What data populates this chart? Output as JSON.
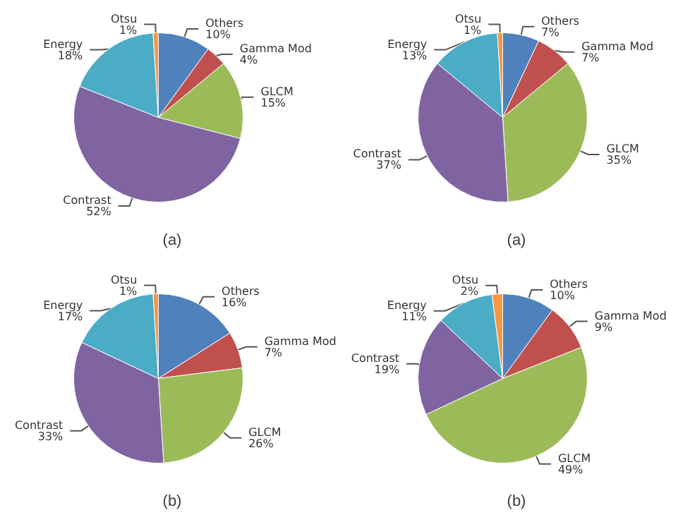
{
  "chart_data": [
    {
      "type": "pie",
      "title": "(a)",
      "categories": [
        "Others",
        "Gamma Mod",
        "GLCM",
        "Contrast",
        "Energy",
        "Otsu"
      ],
      "values": [
        10,
        4,
        15,
        52,
        18,
        1
      ],
      "value_labels": [
        "10%",
        "4%",
        "15%",
        "52%",
        "18%",
        "1%"
      ],
      "colors": [
        "#4f81bd",
        "#c0504d",
        "#9bbb59",
        "#8064a2",
        "#4bacc6",
        "#f79646"
      ]
    },
    {
      "type": "pie",
      "title": "(a)",
      "categories": [
        "Others",
        "Gamma Mod",
        "GLCM",
        "Contrast",
        "Energy",
        "Otsu"
      ],
      "values": [
        7,
        7,
        35,
        37,
        13,
        1
      ],
      "value_labels": [
        "7%",
        "7%",
        "35%",
        "37%",
        "13%",
        "1%"
      ],
      "colors": [
        "#4f81bd",
        "#c0504d",
        "#9bbb59",
        "#8064a2",
        "#4bacc6",
        "#f79646"
      ]
    },
    {
      "type": "pie",
      "title": "(b)",
      "categories": [
        "Others",
        "Gamma Mod",
        "GLCM",
        "Contrast",
        "Energy",
        "Otsu"
      ],
      "values": [
        16,
        7,
        26,
        33,
        17,
        1
      ],
      "value_labels": [
        "16%",
        "7%",
        "26%",
        "33%",
        "17%",
        "1%"
      ],
      "colors": [
        "#4f81bd",
        "#c0504d",
        "#9bbb59",
        "#8064a2",
        "#4bacc6",
        "#f79646"
      ]
    },
    {
      "type": "pie",
      "title": "(b)",
      "categories": [
        "Others",
        "Gamma Mod",
        "GLCM",
        "Contrast",
        "Energy",
        "Otsu"
      ],
      "values": [
        10,
        9,
        49,
        19,
        11,
        2
      ],
      "value_labels": [
        "10%",
        "9%",
        "49%",
        "19%",
        "11%",
        "2%"
      ],
      "colors": [
        "#4f81bd",
        "#c0504d",
        "#9bbb59",
        "#8064a2",
        "#4bacc6",
        "#f79646"
      ]
    }
  ]
}
